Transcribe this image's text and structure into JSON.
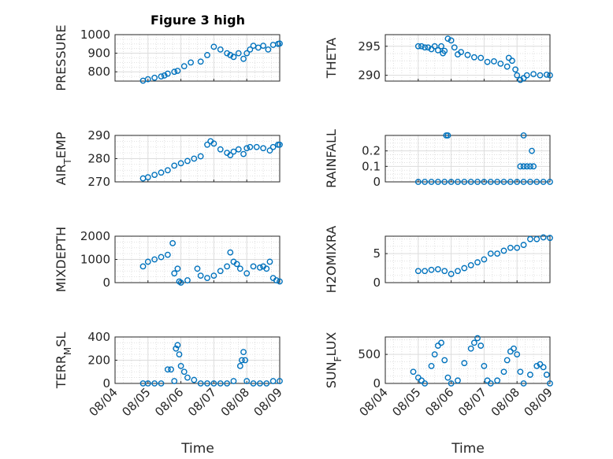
{
  "figure": {
    "title": "Figure 3 high",
    "marker_color": "#0072BD",
    "grid": true,
    "x_tick_labels": [
      "08/04",
      "08/05",
      "08/06",
      "08/07",
      "08/08",
      "08/09"
    ],
    "x_label": "Time"
  },
  "chart_data": [
    {
      "type": "scatter",
      "id": "pressure",
      "ylabel": "PRESSURE",
      "title": "Figure 3 high",
      "ylim": [
        750,
        1000
      ],
      "yticks": [
        800,
        900,
        1000
      ],
      "xlim": [
        0,
        5
      ],
      "xticks": [
        0,
        1,
        2,
        3,
        4,
        5
      ],
      "xtick_labels": [
        "08/04",
        "08/05",
        "08/06",
        "08/07",
        "08/08",
        "08/09"
      ],
      "x": [
        0.85,
        1.0,
        1.2,
        1.4,
        1.5,
        1.6,
        1.8,
        1.9,
        2.1,
        2.3,
        2.6,
        2.8,
        3.0,
        3.2,
        3.4,
        3.5,
        3.6,
        3.75,
        3.9,
        4.0,
        4.1,
        4.2,
        4.35,
        4.5,
        4.65,
        4.8,
        4.95,
        5.0
      ],
      "y": [
        752,
        760,
        768,
        775,
        780,
        790,
        800,
        805,
        830,
        850,
        855,
        890,
        935,
        920,
        900,
        890,
        880,
        900,
        870,
        900,
        920,
        940,
        930,
        940,
        920,
        945,
        950,
        952
      ]
    },
    {
      "type": "scatter",
      "id": "theta",
      "ylabel": "THETA",
      "ylim": [
        289,
        297
      ],
      "yticks": [
        290,
        295
      ],
      "xlim": [
        0,
        5
      ],
      "xticks": [
        0,
        1,
        2,
        3,
        4,
        5
      ],
      "xtick_labels": [
        "08/04",
        "08/05",
        "08/06",
        "08/07",
        "08/08",
        "08/09"
      ],
      "x": [
        1.0,
        1.1,
        1.2,
        1.3,
        1.4,
        1.5,
        1.6,
        1.7,
        1.75,
        1.8,
        1.9,
        2.0,
        2.1,
        2.2,
        2.3,
        2.5,
        2.7,
        2.9,
        3.1,
        3.3,
        3.5,
        3.7,
        3.75,
        3.85,
        3.95,
        4.0,
        4.1,
        4.2,
        4.3,
        4.5,
        4.7,
        4.9,
        5.0
      ],
      "y": [
        295,
        295,
        294.8,
        294.8,
        294.5,
        295,
        294.3,
        295,
        293.8,
        294.2,
        296.3,
        296,
        294.8,
        293.6,
        294,
        293.5,
        293.1,
        293,
        292.3,
        292.4,
        292,
        291.5,
        293,
        292.5,
        291,
        290,
        289.2,
        289.5,
        290,
        290.2,
        290,
        290.1,
        290
      ]
    },
    {
      "type": "scatter",
      "id": "air_temp",
      "ylabel": "AIR_TEMP",
      "ylim": [
        270,
        290
      ],
      "yticks": [
        270,
        280,
        290
      ],
      "xlim": [
        0,
        5
      ],
      "xticks": [
        0,
        1,
        2,
        3,
        4,
        5
      ],
      "xtick_labels": [
        "08/04",
        "08/05",
        "08/06",
        "08/07",
        "08/08",
        "08/09"
      ],
      "x": [
        0.85,
        1.0,
        1.2,
        1.4,
        1.6,
        1.8,
        2.0,
        2.2,
        2.4,
        2.6,
        2.8,
        2.9,
        3.0,
        3.2,
        3.4,
        3.5,
        3.6,
        3.75,
        3.9,
        4.0,
        4.1,
        4.3,
        4.5,
        4.7,
        4.8,
        4.95,
        5.0
      ],
      "y": [
        271.5,
        272,
        273,
        274,
        275,
        277,
        278,
        279,
        280,
        281,
        286,
        287.5,
        286.5,
        284,
        282.5,
        281.5,
        283,
        284,
        282,
        284.5,
        285,
        285,
        284.5,
        283.5,
        285,
        286,
        286
      ]
    },
    {
      "type": "scatter",
      "id": "rainfall",
      "ylabel": "RAINFALL",
      "ylim": [
        0,
        0.3
      ],
      "yticks": [
        0,
        0.1,
        0.2
      ],
      "xlim": [
        0,
        5
      ],
      "xticks": [
        0,
        1,
        2,
        3,
        4,
        5
      ],
      "xtick_labels": [
        "08/04",
        "08/05",
        "08/06",
        "08/07",
        "08/08",
        "08/09"
      ],
      "x": [
        1.0,
        1.2,
        1.4,
        1.6,
        1.8,
        2.0,
        2.2,
        2.4,
        2.6,
        2.8,
        3.0,
        3.2,
        3.4,
        3.6,
        3.8,
        4.0,
        4.2,
        4.4,
        4.6,
        4.8,
        5.0,
        1.85,
        1.9,
        4.2,
        4.45,
        4.1,
        4.2,
        4.3,
        4.4,
        4.5
      ],
      "y": [
        0,
        0,
        0,
        0,
        0,
        0,
        0,
        0,
        0,
        0,
        0,
        0,
        0,
        0,
        0,
        0,
        0,
        0,
        0,
        0,
        0,
        0.3,
        0.3,
        0.3,
        0.2,
        0.1,
        0.1,
        0.1,
        0.1,
        0.1
      ]
    },
    {
      "type": "scatter",
      "id": "mixdepth",
      "ylabel": "MIXDEPTH",
      "ylim": [
        0,
        2000
      ],
      "yticks": [
        0,
        1000,
        2000
      ],
      "xlim": [
        0,
        5
      ],
      "xticks": [
        0,
        1,
        2,
        3,
        4,
        5
      ],
      "xtick_labels": [
        "08/04",
        "08/05",
        "08/06",
        "08/07",
        "08/08",
        "08/09"
      ],
      "x": [
        0.85,
        1.0,
        1.2,
        1.4,
        1.6,
        1.75,
        1.8,
        1.9,
        1.95,
        2.0,
        2.2,
        2.5,
        2.6,
        2.8,
        3.0,
        3.2,
        3.4,
        3.5,
        3.6,
        3.7,
        3.8,
        4.0,
        4.2,
        4.4,
        4.5,
        4.6,
        4.7,
        4.8,
        4.9,
        5.0
      ],
      "y": [
        700,
        900,
        1000,
        1100,
        1200,
        1700,
        400,
        600,
        50,
        0,
        100,
        600,
        300,
        200,
        300,
        500,
        700,
        1300,
        900,
        800,
        600,
        400,
        700,
        650,
        700,
        600,
        900,
        200,
        100,
        50
      ]
    },
    {
      "type": "scatter",
      "id": "h2omixra",
      "ylabel": "H2OMIXRA",
      "ylim": [
        0,
        8
      ],
      "yticks": [
        0,
        5
      ],
      "xlim": [
        0,
        5
      ],
      "xticks": [
        0,
        1,
        2,
        3,
        4,
        5
      ],
      "xtick_labels": [
        "08/04",
        "08/05",
        "08/06",
        "08/07",
        "08/08",
        "08/09"
      ],
      "x": [
        1.0,
        1.2,
        1.4,
        1.6,
        1.8,
        2.0,
        2.2,
        2.4,
        2.6,
        2.8,
        3.0,
        3.2,
        3.4,
        3.6,
        3.8,
        4.0,
        4.2,
        4.4,
        4.6,
        4.8,
        5.0
      ],
      "y": [
        2,
        2,
        2.2,
        2.3,
        2,
        1.5,
        2,
        2.5,
        3,
        3.5,
        4,
        5,
        5,
        5.5,
        6,
        6,
        6.5,
        7.5,
        7.5,
        7.8,
        7.7
      ]
    },
    {
      "type": "scatter",
      "id": "terr_msl",
      "ylabel": "TERR_MSL",
      "ylim": [
        0,
        400
      ],
      "yticks": [
        0,
        200,
        400
      ],
      "xlim": [
        0,
        5
      ],
      "xticks": [
        0,
        1,
        2,
        3,
        4,
        5
      ],
      "xtick_labels": [
        "08/04",
        "08/05",
        "08/06",
        "08/07",
        "08/08",
        "08/09"
      ],
      "x": [
        0.85,
        1.0,
        1.2,
        1.4,
        1.6,
        1.7,
        1.8,
        1.85,
        1.9,
        1.95,
        2.0,
        2.1,
        2.2,
        2.4,
        2.6,
        2.8,
        3.0,
        3.2,
        3.4,
        3.6,
        3.8,
        3.85,
        3.9,
        3.95,
        4.0,
        4.2,
        4.4,
        4.6,
        4.8,
        5.0
      ],
      "y": [
        0,
        0,
        0,
        0,
        120,
        120,
        20,
        300,
        330,
        250,
        150,
        100,
        50,
        30,
        0,
        0,
        0,
        0,
        0,
        20,
        150,
        200,
        270,
        200,
        20,
        0,
        0,
        0,
        20,
        20
      ]
    },
    {
      "type": "scatter",
      "id": "sun_flux",
      "ylabel": "SUN_FLUX",
      "ylim": [
        0,
        800
      ],
      "yticks": [
        0,
        500
      ],
      "xlim": [
        0,
        5
      ],
      "xticks": [
        0,
        1,
        2,
        3,
        4,
        5
      ],
      "xtick_labels": [
        "08/04",
        "08/05",
        "08/06",
        "08/07",
        "08/08",
        "08/09"
      ],
      "x": [
        0.85,
        1.0,
        1.1,
        1.2,
        1.4,
        1.5,
        1.6,
        1.7,
        1.8,
        1.9,
        2.0,
        2.2,
        2.4,
        2.6,
        2.7,
        2.8,
        2.9,
        3.0,
        3.1,
        3.2,
        3.4,
        3.6,
        3.7,
        3.8,
        3.9,
        4.0,
        4.1,
        4.2,
        4.4,
        4.6,
        4.7,
        4.8,
        4.9,
        5.0
      ],
      "y": [
        200,
        100,
        50,
        0,
        300,
        500,
        650,
        700,
        400,
        100,
        0,
        50,
        350,
        600,
        700,
        780,
        650,
        300,
        50,
        0,
        50,
        200,
        400,
        550,
        600,
        500,
        200,
        0,
        150,
        300,
        330,
        280,
        150,
        0
      ]
    }
  ]
}
